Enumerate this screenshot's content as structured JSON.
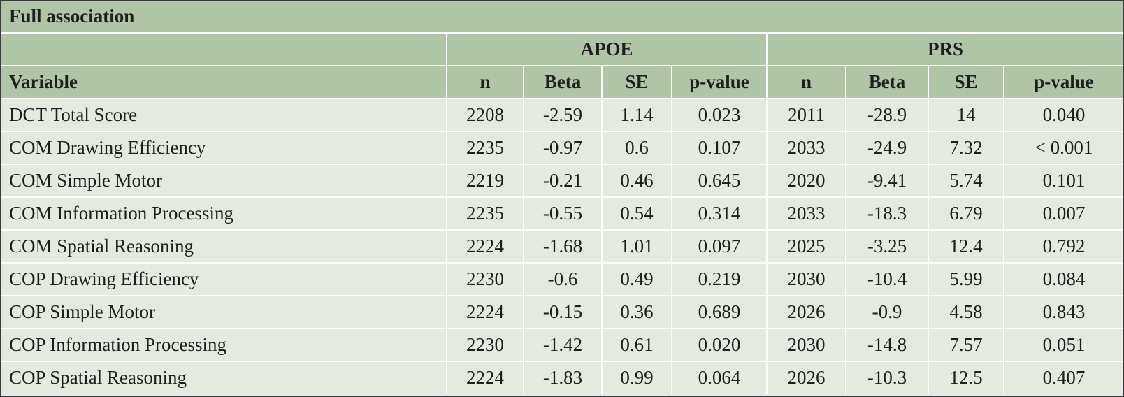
{
  "table": {
    "title": "Full association",
    "groups": [
      "APOE",
      "PRS"
    ],
    "variable_header": "Variable",
    "columns": [
      "n",
      "Beta",
      "SE",
      "p-value",
      "n",
      "Beta",
      "SE",
      "p-value"
    ],
    "rows": [
      [
        "DCT Total Score",
        "2208",
        "-2.59",
        "1.14",
        "0.023",
        "2011",
        "-28.9",
        "14",
        "0.040"
      ],
      [
        "COM Drawing Efficiency",
        "2235",
        "-0.97",
        "0.6",
        "0.107",
        "2033",
        "-24.9",
        "7.32",
        "< 0.001"
      ],
      [
        "COM Simple Motor",
        "2219",
        "-0.21",
        "0.46",
        "0.645",
        "2020",
        "-9.41",
        "5.74",
        "0.101"
      ],
      [
        "COM Information Processing",
        "2235",
        "-0.55",
        "0.54",
        "0.314",
        "2033",
        "-18.3",
        "6.79",
        "0.007"
      ],
      [
        "COM Spatial Reasoning",
        "2224",
        "-1.68",
        "1.01",
        "0.097",
        "2025",
        "-3.25",
        "12.4",
        "0.792"
      ],
      [
        "COP Drawing Efficiency",
        "2230",
        "-0.6",
        "0.49",
        "0.219",
        "2030",
        "-10.4",
        "5.99",
        "0.084"
      ],
      [
        "COP Simple Motor",
        "2224",
        "-0.15",
        "0.36",
        "0.689",
        "2026",
        "-0.9",
        "4.58",
        "0.843"
      ],
      [
        "COP Information Processing",
        "2230",
        "-1.42",
        "0.61",
        "0.020",
        "2030",
        "-14.8",
        "7.57",
        "0.051"
      ],
      [
        "COP Spatial Reasoning",
        "2224",
        "-1.83",
        "0.99",
        "0.064",
        "2026",
        "-10.3",
        "12.5",
        "0.407"
      ]
    ]
  },
  "colors": {
    "header_background": "#b0c4a8",
    "body_background": "#e4eadf",
    "grid_lines": "#ffffff",
    "outer_border": "#3b3b3b"
  }
}
